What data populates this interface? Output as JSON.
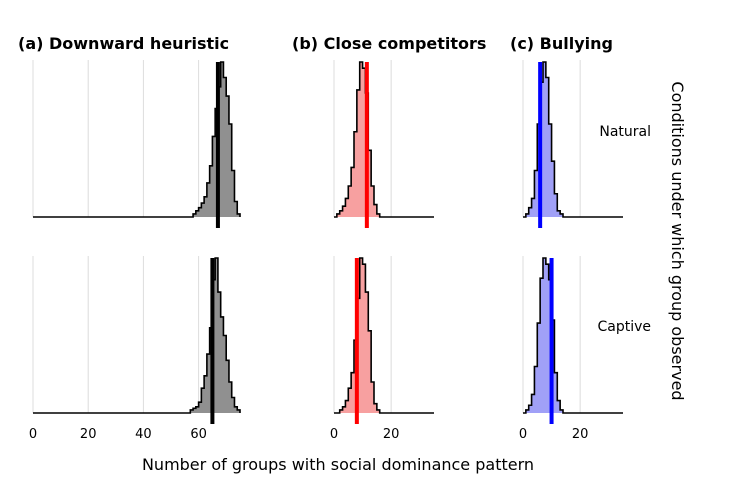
{
  "chart_data": {
    "type": "histogram",
    "xlabel": "Number of groups with social dominance pattern",
    "facet_row_label": "Conditions under which group observed",
    "rows": [
      "Natural",
      "Captive"
    ],
    "grid": true,
    "panels": [
      {
        "title": "(a) Downward heuristic",
        "fill": "#909090",
        "line_color": "#000000",
        "xlim": [
          0,
          75
        ],
        "xticks": [
          0,
          20,
          40,
          60
        ],
        "gridlines": [
          0,
          20,
          40,
          60
        ],
        "rows": [
          {
            "row": "Natural",
            "obs": 67,
            "bins": [
              [
                58,
                0.02
              ],
              [
                59,
                0.04
              ],
              [
                60,
                0.06
              ],
              [
                61,
                0.09
              ],
              [
                62,
                0.13
              ],
              [
                63,
                0.22
              ],
              [
                64,
                0.33
              ],
              [
                65,
                0.52
              ],
              [
                66,
                0.7
              ],
              [
                67,
                0.84
              ],
              [
                68,
                1.0
              ],
              [
                69,
                0.9
              ],
              [
                70,
                0.78
              ],
              [
                71,
                0.6
              ],
              [
                72,
                0.3
              ],
              [
                73,
                0.1
              ],
              [
                74,
                0.02
              ]
            ]
          },
          {
            "row": "Captive",
            "obs": 65,
            "bins": [
              [
                57,
                0.02
              ],
              [
                58,
                0.03
              ],
              [
                59,
                0.04
              ],
              [
                60,
                0.07
              ],
              [
                61,
                0.16
              ],
              [
                62,
                0.24
              ],
              [
                63,
                0.38
              ],
              [
                64,
                0.55
              ],
              [
                65,
                0.86
              ],
              [
                66,
                1.0
              ],
              [
                67,
                0.78
              ],
              [
                68,
                0.62
              ],
              [
                69,
                0.5
              ],
              [
                70,
                0.34
              ],
              [
                71,
                0.2
              ],
              [
                72,
                0.1
              ],
              [
                73,
                0.04
              ],
              [
                74,
                0.02
              ]
            ]
          }
        ]
      },
      {
        "title": "(b) Close competitors",
        "fill": "#f7a0a0",
        "line_color": "#ff0000",
        "xlim": [
          0,
          35
        ],
        "xticks": [
          0,
          20
        ],
        "gridlines": [
          0,
          20
        ],
        "rows": [
          {
            "row": "Natural",
            "obs": 11.5,
            "bins": [
              [
                1,
                0.02
              ],
              [
                2,
                0.04
              ],
              [
                3,
                0.07
              ],
              [
                4,
                0.12
              ],
              [
                5,
                0.2
              ],
              [
                6,
                0.32
              ],
              [
                7,
                0.55
              ],
              [
                8,
                0.82
              ],
              [
                9,
                1.0
              ],
              [
                10,
                0.96
              ],
              [
                11,
                0.8
              ],
              [
                12,
                0.43
              ],
              [
                13,
                0.2
              ],
              [
                14,
                0.08
              ],
              [
                15,
                0.02
              ]
            ]
          },
          {
            "row": "Captive",
            "obs": 8,
            "bins": [
              [
                2,
                0.02
              ],
              [
                3,
                0.04
              ],
              [
                4,
                0.08
              ],
              [
                5,
                0.16
              ],
              [
                6,
                0.26
              ],
              [
                7,
                0.47
              ],
              [
                8,
                0.74
              ],
              [
                9,
                1.0
              ],
              [
                10,
                0.96
              ],
              [
                11,
                0.78
              ],
              [
                12,
                0.53
              ],
              [
                13,
                0.2
              ],
              [
                14,
                0.06
              ],
              [
                15,
                0.02
              ]
            ]
          }
        ]
      },
      {
        "title": "(c) Bullying",
        "fill": "#a0a0f7",
        "line_color": "#0000ff",
        "xlim": [
          0,
          35
        ],
        "xticks": [
          0,
          20
        ],
        "gridlines": [
          0,
          20
        ],
        "rows": [
          {
            "row": "Natural",
            "obs": 6,
            "bins": [
              [
                1,
                0.02
              ],
              [
                2,
                0.06
              ],
              [
                3,
                0.12
              ],
              [
                4,
                0.3
              ],
              [
                5,
                0.6
              ],
              [
                6,
                0.87
              ],
              [
                7,
                1.0
              ],
              [
                8,
                0.9
              ],
              [
                9,
                0.6
              ],
              [
                10,
                0.36
              ],
              [
                11,
                0.15
              ],
              [
                12,
                0.04
              ],
              [
                13,
                0.02
              ]
            ]
          },
          {
            "row": "Captive",
            "obs": 10,
            "bins": [
              [
                1,
                0.02
              ],
              [
                2,
                0.05
              ],
              [
                3,
                0.12
              ],
              [
                4,
                0.3
              ],
              [
                5,
                0.58
              ],
              [
                6,
                0.87
              ],
              [
                7,
                1.0
              ],
              [
                8,
                0.96
              ],
              [
                9,
                0.86
              ],
              [
                10,
                0.6
              ],
              [
                11,
                0.26
              ],
              [
                12,
                0.08
              ],
              [
                13,
                0.02
              ]
            ]
          }
        ]
      }
    ]
  }
}
